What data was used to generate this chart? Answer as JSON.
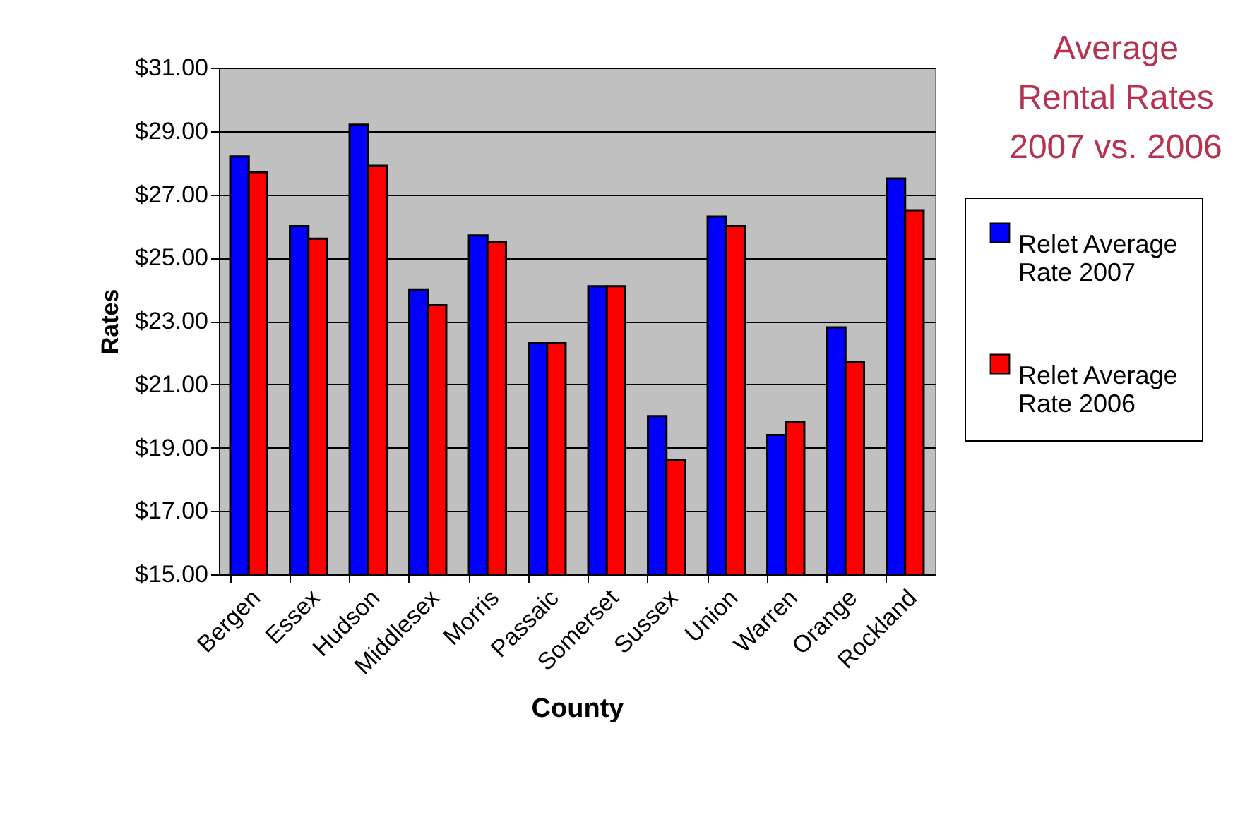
{
  "chart_data": {
    "type": "bar",
    "title": "Average Rental Rates 2007 vs. 2006",
    "xlabel": "County",
    "ylabel": "Rates",
    "categories": [
      "Bergen",
      "Essex",
      "Hudson",
      "Middlesex",
      "Morris",
      "Passaic",
      "Somerset",
      "Sussex",
      "Union",
      "Warren",
      "Orange",
      "Rockland"
    ],
    "series": [
      {
        "name": "Relet Average Rate 2007",
        "color": "#0000ff",
        "values": [
          28.2,
          26.0,
          29.2,
          24.0,
          25.7,
          22.3,
          24.1,
          20.0,
          26.3,
          19.4,
          22.8,
          27.5
        ]
      },
      {
        "name": "Relet Average Rate 2006",
        "color": "#ff0000",
        "values": [
          27.7,
          25.6,
          27.9,
          23.5,
          25.5,
          22.3,
          24.1,
          18.6,
          26.0,
          19.8,
          21.7,
          26.5
        ]
      }
    ],
    "ylim": [
      15,
      31
    ],
    "yticks": [
      {
        "value": 15,
        "label": "$15.00"
      },
      {
        "value": 17,
        "label": "$17.00"
      },
      {
        "value": 19,
        "label": "$19.00"
      },
      {
        "value": 21,
        "label": "$21.00"
      },
      {
        "value": 23,
        "label": "$23.00"
      },
      {
        "value": 25,
        "label": "$25.00"
      },
      {
        "value": 27,
        "label": "$27.00"
      },
      {
        "value": 29,
        "label": "$29.00"
      },
      {
        "value": 31,
        "label": "$31.00"
      }
    ],
    "grid": "y",
    "legend": "right"
  }
}
